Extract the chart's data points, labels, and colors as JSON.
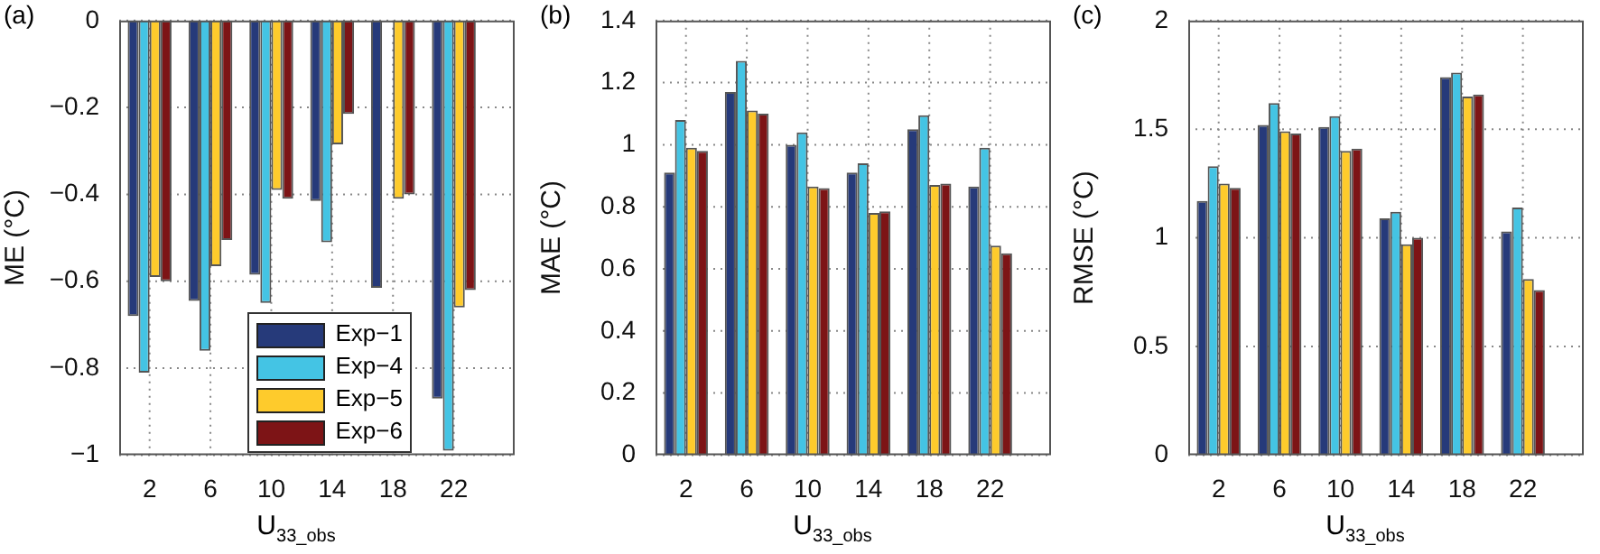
{
  "chart_data": [
    {
      "type": "bar",
      "title": "(a)",
      "xlabel": "U$_{33_obs}$",
      "ylabel": "ME (°C)",
      "x": [
        2,
        6,
        10,
        14,
        18,
        22
      ],
      "xlim": [
        0,
        26
      ],
      "xticks": [
        2,
        6,
        10,
        14,
        18,
        22
      ],
      "ylim": [
        -1,
        0
      ],
      "yticks": [
        {
          "value": -1,
          "label": "−1"
        },
        {
          "value": -0.8,
          "label": "−0.8"
        },
        {
          "value": -0.6,
          "label": "−0.6"
        },
        {
          "value": -0.4,
          "label": "−0.4"
        },
        {
          "value": -0.2,
          "label": "−0.2"
        },
        0
      ],
      "grid": true,
      "legend": "bottom right",
      "series": [
        {
          "name": "Exp−1",
          "color": "#263a7a",
          "values": [
            -0.68,
            -0.645,
            -0.585,
            -0.415,
            -0.615,
            -0.87
          ]
        },
        {
          "name": "Exp−4",
          "color": "#44c4e4",
          "values": [
            -0.81,
            -0.76,
            -0.65,
            -0.51,
            null,
            -0.99
          ]
        },
        {
          "name": "Exp−5",
          "color": "#fecb2c",
          "values": [
            -0.59,
            -0.565,
            -0.39,
            -0.285,
            -0.41,
            -0.66
          ]
        },
        {
          "name": "Exp−6",
          "color": "#7d1416",
          "values": [
            -0.6,
            -0.505,
            -0.41,
            -0.215,
            -0.4,
            -0.62
          ]
        }
      ]
    },
    {
      "type": "bar",
      "title": "(b)",
      "xlabel": "U$_{33_obs}$",
      "ylabel": "MAE (°C)",
      "x": [
        2,
        6,
        10,
        14,
        18,
        22
      ],
      "xlim": [
        0,
        26
      ],
      "xticks": [
        2,
        6,
        10,
        14,
        18,
        22
      ],
      "ylim": [
        0,
        1.4
      ],
      "yticks": [
        0,
        0.2,
        0.4,
        0.6,
        0.8,
        1,
        1.2,
        1.4
      ],
      "grid": true,
      "series": [
        {
          "color": "#263a7a",
          "values": [
            0.91,
            1.17,
            1.0,
            0.91,
            1.05,
            0.865
          ]
        },
        {
          "color": "#44c4e4",
          "values": [
            1.08,
            1.27,
            1.04,
            0.94,
            1.095,
            0.99
          ]
        },
        {
          "color": "#fecb2c",
          "values": [
            0.99,
            1.11,
            0.865,
            0.78,
            0.87,
            0.675
          ]
        },
        {
          "color": "#7d1416",
          "values": [
            0.98,
            1.1,
            0.86,
            0.785,
            0.875,
            0.65
          ]
        }
      ]
    },
    {
      "type": "bar",
      "title": "(c)",
      "xlabel": "U$_{33_obs}$",
      "ylabel": "RMSE (°C)",
      "x": [
        2,
        6,
        10,
        14,
        18,
        22
      ],
      "xlim": [
        0,
        26
      ],
      "xticks": [
        2,
        6,
        10,
        14,
        18,
        22
      ],
      "ylim": [
        0,
        2
      ],
      "yticks": [
        0,
        0.5,
        1,
        1.5,
        2
      ],
      "grid": true,
      "series": [
        {
          "color": "#263a7a",
          "values": [
            1.17,
            1.52,
            1.51,
            1.09,
            1.74,
            1.03
          ]
        },
        {
          "color": "#44c4e4",
          "values": [
            1.33,
            1.62,
            1.56,
            1.12,
            1.76,
            1.14
          ]
        },
        {
          "color": "#fecb2c",
          "values": [
            1.25,
            1.49,
            1.4,
            0.97,
            1.65,
            0.81
          ]
        },
        {
          "color": "#7d1416",
          "values": [
            1.23,
            1.48,
            1.41,
            1.0,
            1.66,
            0.76
          ]
        }
      ]
    }
  ]
}
